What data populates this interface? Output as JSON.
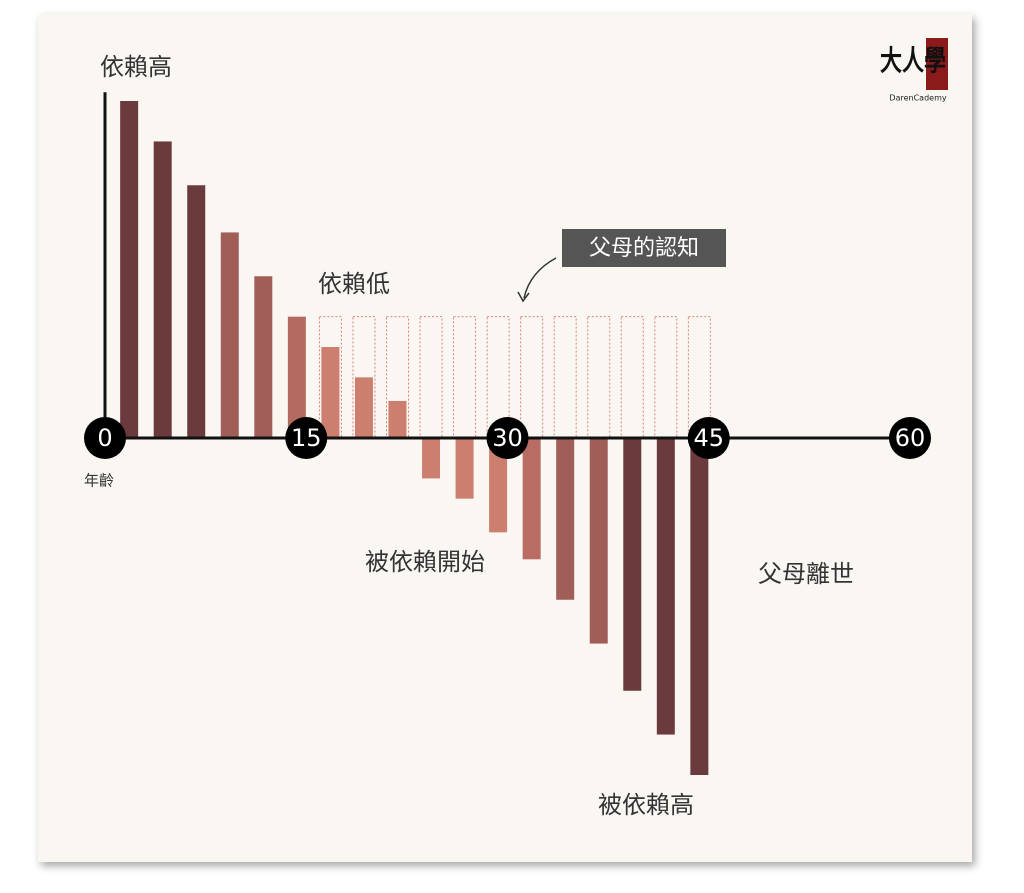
{
  "chart_data": {
    "type": "bar",
    "x_label": "年齡",
    "x": [
      1.8,
      4.3,
      6.8,
      9.3,
      11.8,
      14.3,
      16.8,
      19.3,
      21.8,
      24.3,
      26.8,
      29.3,
      31.8,
      34.3,
      36.8,
      39.3,
      41.8,
      44.3
    ],
    "xlim": [
      0,
      60
    ],
    "xticks": [
      0,
      15,
      30,
      45,
      60
    ],
    "ylim": [
      -110,
      110
    ],
    "series": [
      {
        "name": "依賴",
        "values": [
          100,
          88,
          75,
          61,
          48,
          36,
          27,
          18,
          11,
          -12,
          -18,
          -28,
          -36,
          -48,
          -61,
          -75,
          -88,
          -100
        ],
        "colors": [
          "#6b3a3c",
          "#6b3a3c",
          "#6b3a3c",
          "#a15d58",
          "#a15d58",
          "#b46a61",
          "#cc7f6e",
          "#cc7f6e",
          "#cc7f6e",
          "#cc7f6e",
          "#cc7f6e",
          "#cc7f6e",
          "#b86c63",
          "#a15d58",
          "#a15d58",
          "#6b3a3c",
          "#6b3a3c",
          "#6b3a3c"
        ]
      },
      {
        "name": "父母的認知",
        "color": "#d9837a",
        "values": [
          null,
          null,
          null,
          null,
          null,
          null,
          36,
          36,
          36,
          36,
          36,
          36,
          36,
          36,
          36,
          36,
          36,
          36
        ]
      }
    ],
    "annotations": [
      "依賴高",
      "依賴低",
      "被依賴開始",
      "被依賴高",
      "父母離世"
    ],
    "logo": {
      "text": "大人學",
      "subtitle": "DarenCademy"
    }
  }
}
